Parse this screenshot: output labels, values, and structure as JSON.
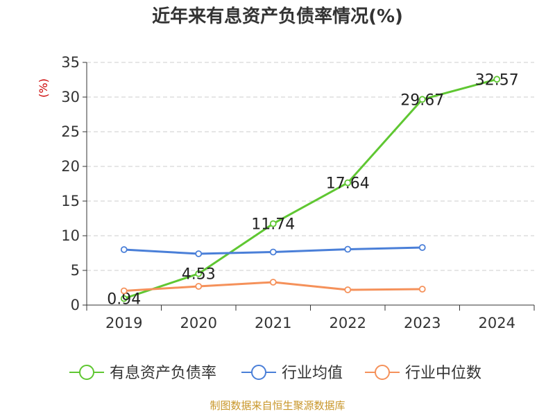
{
  "chart_data": {
    "type": "line",
    "title": "近年来有息资产负债率情况(%)",
    "ylabel": "(%)",
    "xlabel": "",
    "categories": [
      "2019",
      "2020",
      "2021",
      "2022",
      "2023",
      "2024"
    ],
    "ylim": [
      0,
      35
    ],
    "yticks": [
      0,
      5,
      10,
      15,
      20,
      25,
      30,
      35
    ],
    "grid": true,
    "legend_position": "bottom",
    "series": [
      {
        "name": "有息资产负债率",
        "color": "#5fc732",
        "values": [
          0.94,
          4.53,
          11.74,
          17.64,
          29.67,
          32.57
        ],
        "labels": [
          "0.94",
          "4.53",
          "11.74",
          "17.64",
          "29.67",
          "32.57"
        ]
      },
      {
        "name": "行业均值",
        "color": "#4a7fd8",
        "values": [
          8.0,
          7.4,
          7.65,
          8.05,
          8.3,
          null
        ]
      },
      {
        "name": "行业中位数",
        "color": "#f5915a",
        "values": [
          2.05,
          2.7,
          3.3,
          2.2,
          2.3,
          null
        ]
      }
    ]
  },
  "source": "制图数据来自恒生聚源数据库"
}
